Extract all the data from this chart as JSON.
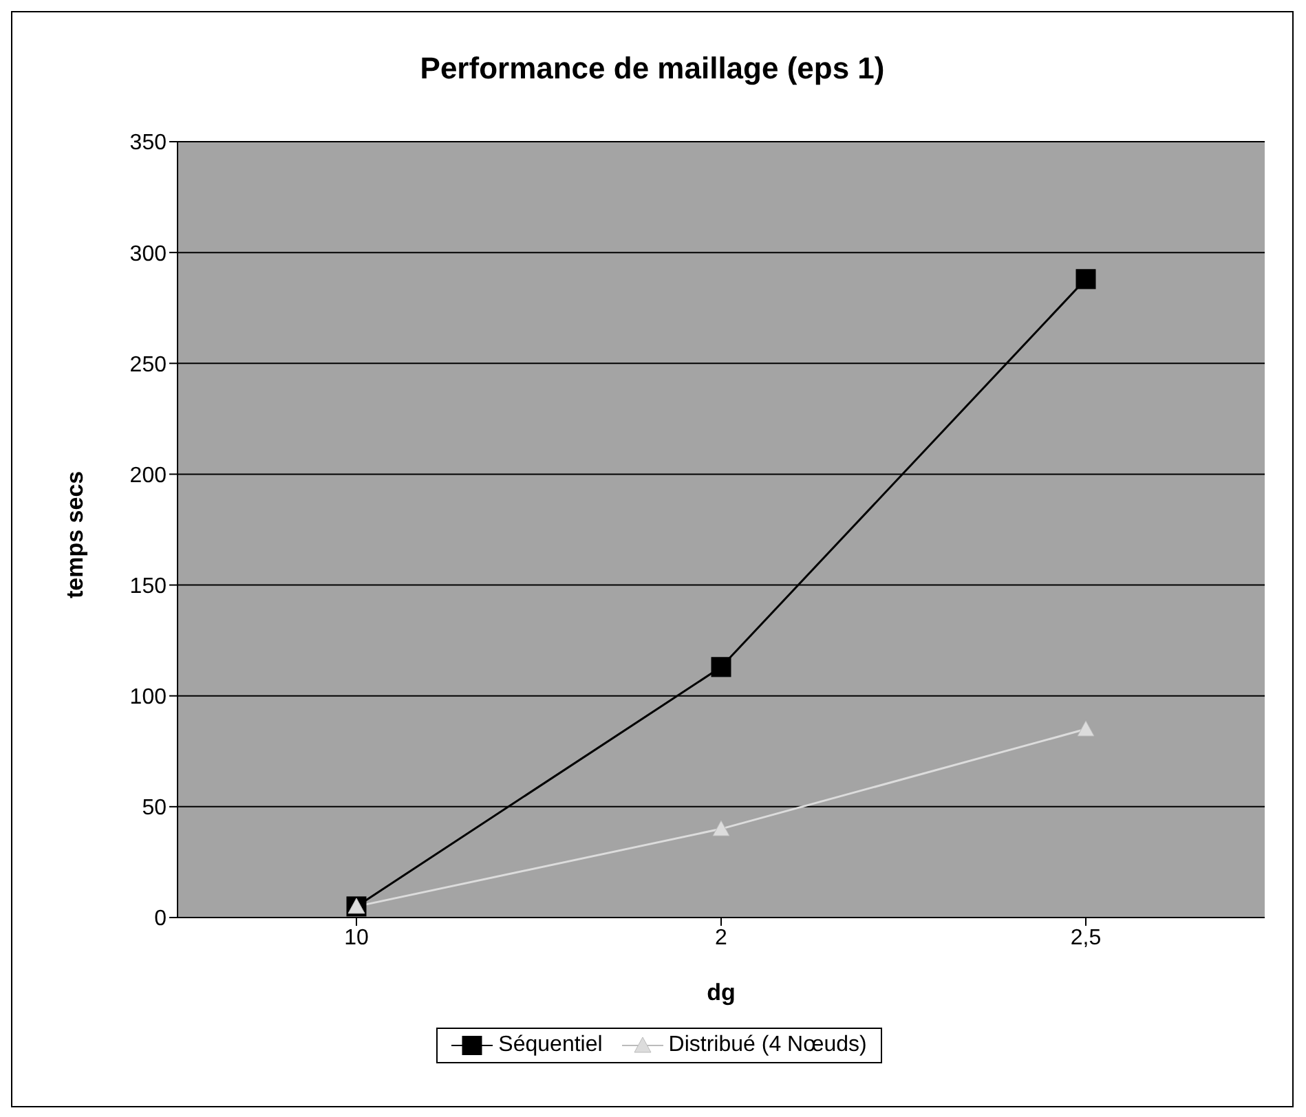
{
  "chart_data": {
    "type": "line",
    "title": "Performance de maillage (eps 1)",
    "xlabel": "dg",
    "ylabel": "temps secs",
    "categories": [
      "10",
      "2",
      "2,5"
    ],
    "series": [
      {
        "name": "Séquentiel",
        "color": "#000000",
        "marker": "square",
        "values": [
          5,
          113,
          288
        ]
      },
      {
        "name": "Distribué  (4 Nœuds)",
        "color": "#dcdcdc",
        "marker": "triangle",
        "values": [
          5,
          40,
          85
        ]
      }
    ],
    "ylim": [
      0,
      350
    ],
    "yticks": [
      0,
      50,
      100,
      150,
      200,
      250,
      300,
      350
    ],
    "grid": "y",
    "legend": "bottom",
    "line_style": "solid"
  }
}
